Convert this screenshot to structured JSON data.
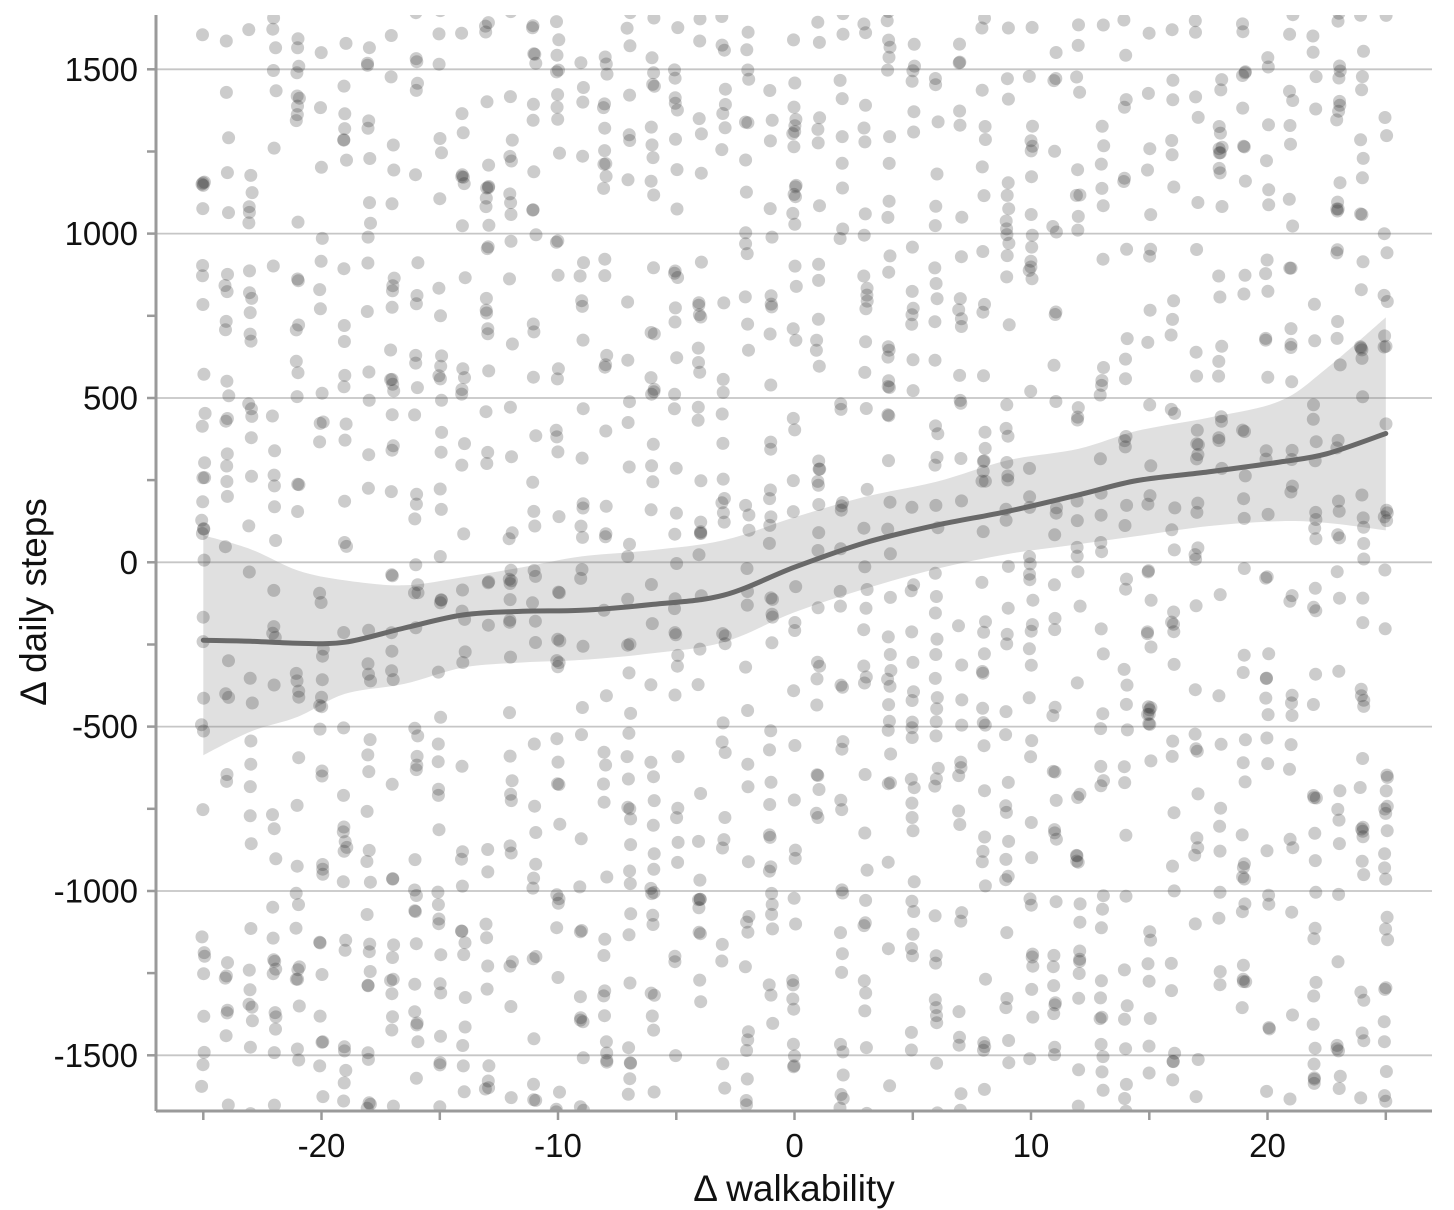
{
  "chart_data": {
    "type": "scatter",
    "title": "",
    "xlabel": "Δ walkability",
    "ylabel": "Δ daily steps",
    "xlim": [
      -27,
      27
    ],
    "ylim": [
      -1670,
      1670
    ],
    "x_major_ticks": [
      -20,
      -10,
      0,
      10,
      20
    ],
    "x_minor_ticks": [
      -25,
      -15,
      -5,
      5,
      15,
      25
    ],
    "y_major_ticks": [
      -1500,
      -1000,
      -500,
      0,
      500,
      1000,
      1500
    ],
    "y_minor_ticks": [
      -1250,
      -750,
      -250,
      250,
      750,
      1250
    ],
    "grid": "horizontal-only",
    "legend": "none",
    "trend": {
      "name": "smoothed-trend",
      "x": [
        -25,
        -23,
        -21,
        -19,
        -16.5,
        -14,
        -11.5,
        -9,
        -6,
        -3,
        0,
        3,
        6,
        9,
        12,
        14.5,
        17.5,
        20.5,
        22.5,
        25
      ],
      "y": [
        -237,
        -240,
        -246,
        -243,
        -200,
        -160,
        -149,
        -146,
        -128,
        -100,
        -15,
        60,
        113,
        155,
        205,
        249,
        275,
        305,
        330,
        392
      ]
    },
    "band": {
      "name": "confidence-band",
      "x": [
        -25,
        -23,
        -21,
        -19,
        -16.5,
        -14,
        -11.5,
        -9,
        -6,
        -3,
        0,
        3,
        6,
        9,
        12,
        14.5,
        17.5,
        20.5,
        22.5,
        25
      ],
      "upper": [
        82,
        40,
        -25,
        -55,
        -70,
        -45,
        -15,
        18,
        37,
        67,
        137,
        200,
        245,
        310,
        345,
        400,
        440,
        490,
        590,
        745
      ],
      "lower": [
        -587,
        -515,
        -470,
        -400,
        -370,
        -320,
        -305,
        -297,
        -277,
        -243,
        -152,
        -80,
        -20,
        25,
        55,
        80,
        110,
        125,
        120,
        97
      ]
    },
    "scatter": {
      "name": "observations",
      "x_columns_min": -25,
      "x_columns_max": 25,
      "x_column_step": 1,
      "points_per_column_min": 30,
      "points_per_column_max": 40,
      "y_min": -1680,
      "y_max": 1680,
      "x_jitter": 0.16,
      "seed": 11,
      "note": "dense uniform cloud of paired-difference observations, one vertical strip per integer walkability change"
    }
  },
  "styles": {
    "background": "#ffffff",
    "point_color": "#2b2b2b",
    "point_opacity": 0.24,
    "point_radius": 6.5,
    "band_color": "#e0e0e0",
    "trend_color": "#696969",
    "trend_width": 5,
    "grid_color": "rgba(128,128,128,0.45)",
    "grid_width": 1.8,
    "axis_color": "#9a9a9a",
    "axis_width": 3,
    "tick_length": 9,
    "text_color": "#111111",
    "tick_font_size": 33
  }
}
